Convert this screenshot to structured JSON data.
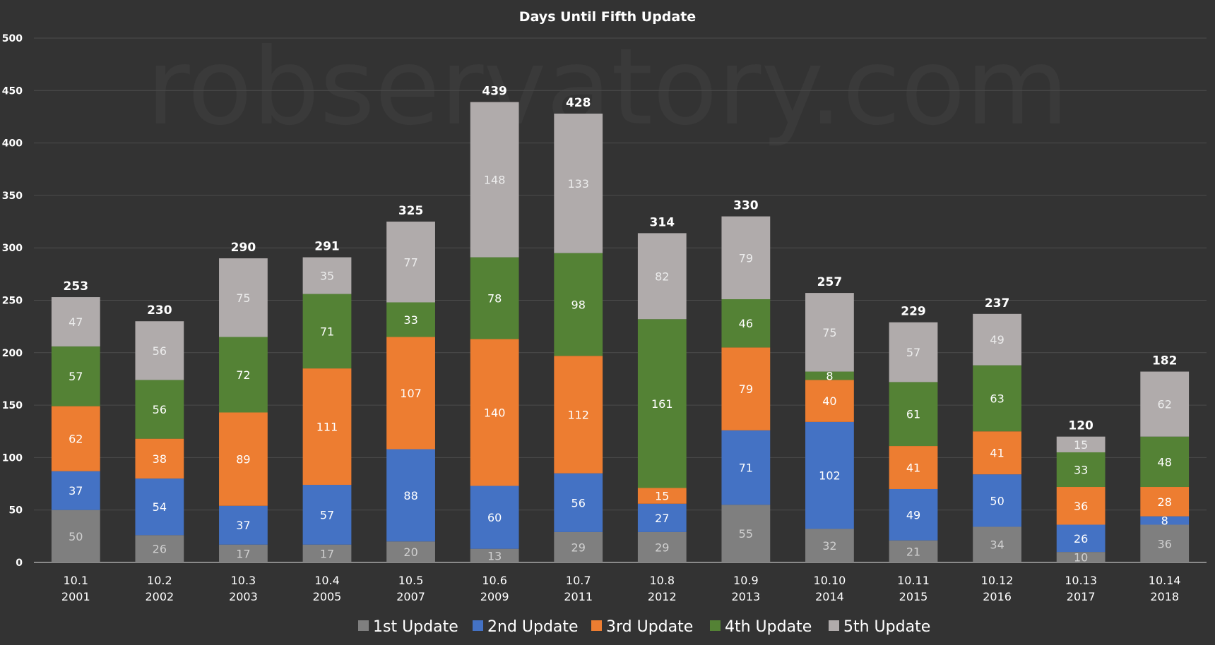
{
  "watermark": "robservatory.com",
  "chart_data": {
    "type": "bar",
    "stacked": true,
    "title": "Days Until Fifth Update",
    "xlabel": "",
    "ylabel": "",
    "ylim": [
      0,
      500
    ],
    "yticks": [
      0,
      50,
      100,
      150,
      200,
      250,
      300,
      350,
      400,
      450,
      500
    ],
    "grid": true,
    "legend_position": "bottom",
    "categories": [
      "10.1",
      "10.2",
      "10.3",
      "10.4",
      "10.5",
      "10.6",
      "10.7",
      "10.8",
      "10.9",
      "10.10",
      "10.11",
      "10.12",
      "10.13",
      "10.14"
    ],
    "years": [
      "2001",
      "2002",
      "2003",
      "2005",
      "2007",
      "2009",
      "2011",
      "2012",
      "2013",
      "2014",
      "2015",
      "2016",
      "2017",
      "2018"
    ],
    "totals": [
      253,
      230,
      290,
      291,
      325,
      439,
      428,
      314,
      330,
      257,
      229,
      237,
      120,
      182
    ],
    "series": [
      {
        "name": "1st Update",
        "color": "#7f7f7f",
        "label_color": "#d0d0d0",
        "values": [
          50,
          26,
          17,
          17,
          20,
          13,
          29,
          29,
          55,
          32,
          21,
          34,
          10,
          36
        ]
      },
      {
        "name": "2nd Update",
        "color": "#4472c4",
        "label_color": "#ffffff",
        "values": [
          37,
          54,
          37,
          57,
          88,
          60,
          56,
          27,
          71,
          102,
          49,
          50,
          26,
          8
        ]
      },
      {
        "name": "3rd Update",
        "color": "#ed7d31",
        "label_color": "#ffffff",
        "values": [
          62,
          38,
          89,
          111,
          107,
          140,
          112,
          15,
          79,
          40,
          41,
          41,
          36,
          28
        ]
      },
      {
        "name": "4th Update",
        "color": "#548235",
        "label_color": "#ffffff",
        "values": [
          57,
          56,
          72,
          71,
          33,
          78,
          98,
          161,
          46,
          8,
          61,
          63,
          33,
          48
        ]
      },
      {
        "name": "5th Update",
        "color": "#b0abab",
        "label_color": "#ececec",
        "values": [
          47,
          56,
          75,
          35,
          77,
          148,
          133,
          82,
          79,
          75,
          57,
          49,
          15,
          62
        ]
      }
    ]
  }
}
